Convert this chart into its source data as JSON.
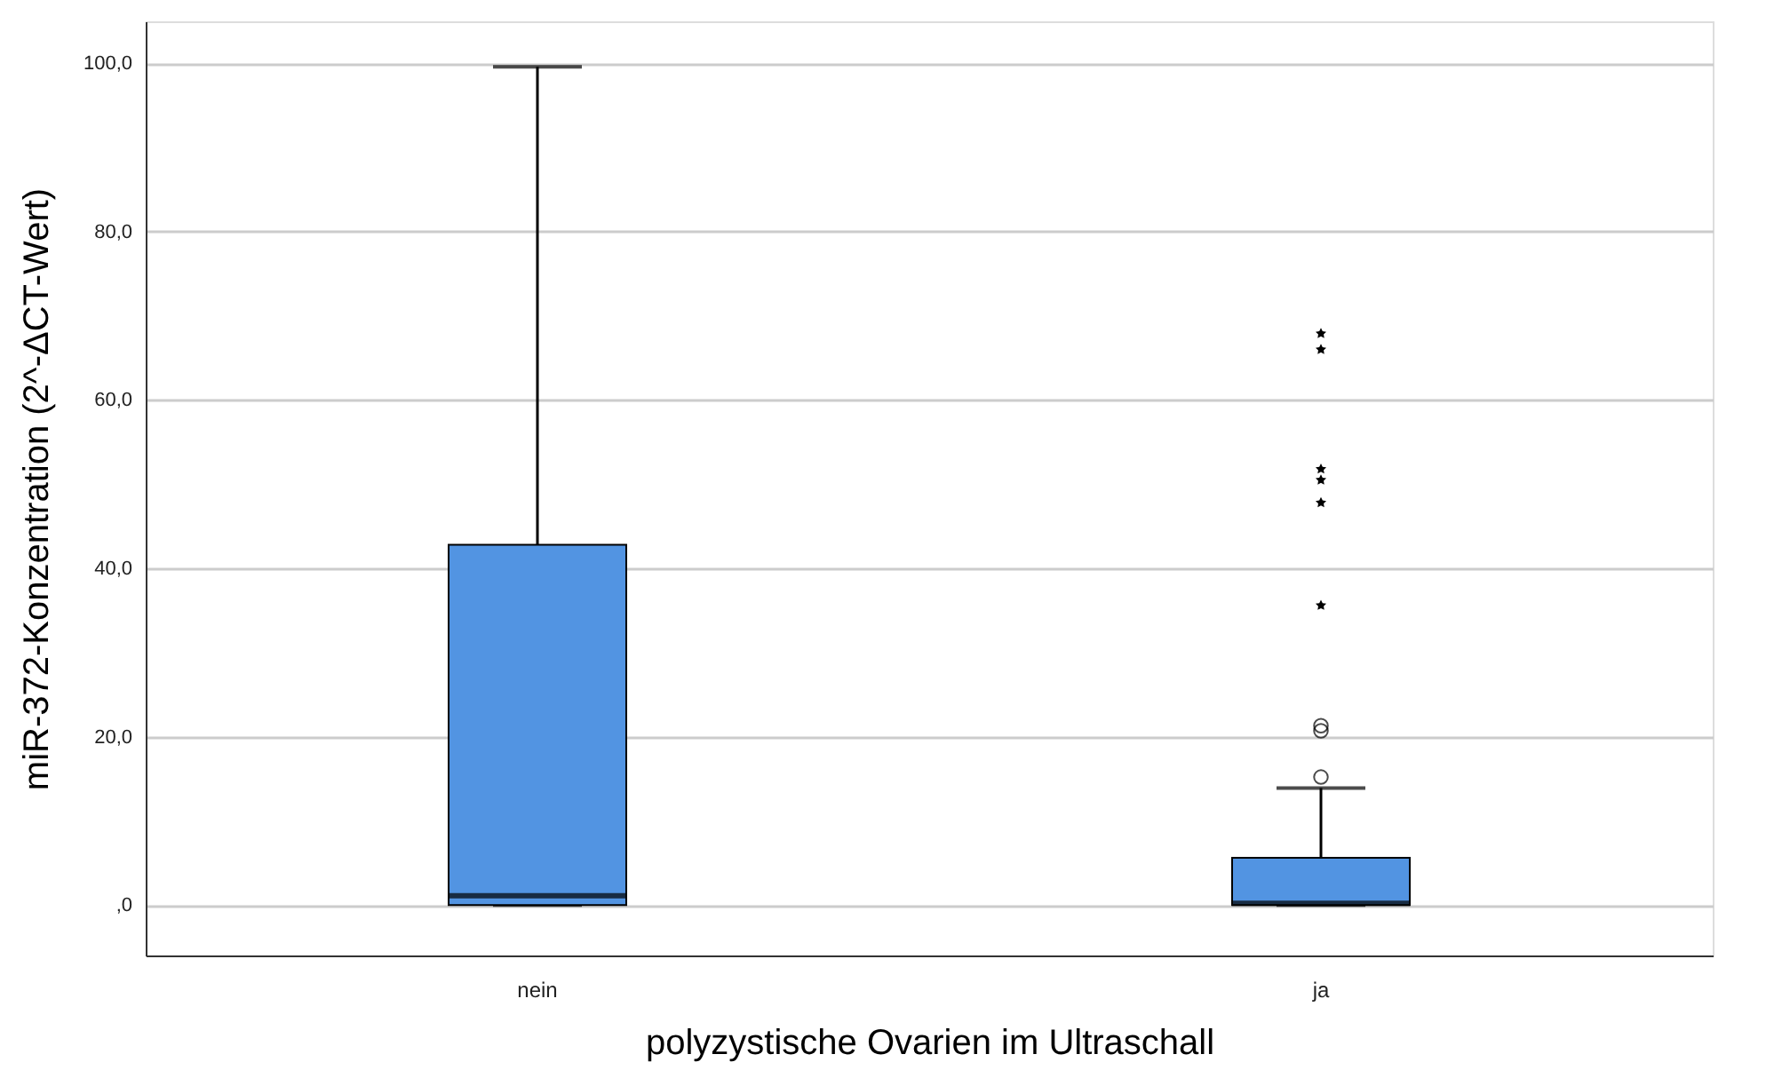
{
  "chart_data": {
    "type": "box",
    "categories": [
      "nein",
      "ja"
    ],
    "xlabel": "polyzystische Ovarien im Ultraschall",
    "ylabel": "miR-372-Konzentration (2^-ΔCT-Wert)",
    "color": "#5294e2",
    "boxes": [
      {
        "low": 0,
        "q1": 0,
        "median": 1.1,
        "q3": 42.8,
        "high": 99.6
      },
      {
        "low": 0,
        "q1": 0,
        "median": 0.2,
        "q3": 5.6,
        "high": 13.9,
        "outliers": [
          15.2,
          20.7,
          21.3
        ]
      }
    ],
    "series": [
      {
        "type": "scatter",
        "marker": "star",
        "color": "#000000",
        "x": [
          "ja",
          "ja",
          "ja",
          "ja",
          "ja",
          "ja"
        ],
        "values": [
          35.6,
          47.8,
          50.5,
          51.8,
          66.0,
          67.9
        ]
      }
    ],
    "ylim": [
      -6,
      105
    ],
    "yticks": [
      {
        "value": 0,
        "label": ",0"
      },
      {
        "value": 20,
        "label": "20,0"
      },
      {
        "value": 40,
        "label": "40,0"
      },
      {
        "value": 60,
        "label": "60,0"
      },
      {
        "value": 80,
        "label": "80,0"
      },
      {
        "value": 100,
        "label": "100,0"
      }
    ],
    "grid": "y"
  }
}
